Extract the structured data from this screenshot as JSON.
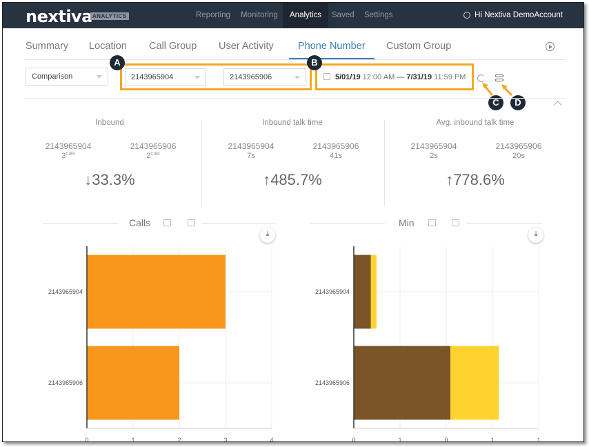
{
  "nav": {
    "logo": "nextiva",
    "logo_badge": "ANALYTICS",
    "items": [
      "Reporting",
      "Monitoring",
      "Analytics",
      "Saved",
      "Settings"
    ],
    "active": "Analytics",
    "user_greeting": "Hi Nextiva DemoAccount",
    "icons": {
      "settings": "gear-icon"
    }
  },
  "tabs": [
    "Summary",
    "Location",
    "Call Group",
    "User Activity",
    "Phone Number",
    "Custom Group"
  ],
  "active_tab": "Phone Number",
  "filters": {
    "mode": "Comparison",
    "number_a": "2143965904",
    "number_b": "2143965906",
    "date_start": "5/01/19",
    "time_start": "12:00 AM",
    "separator": "—",
    "date_end": "7/31/19",
    "time_end": "11:59 PM",
    "callouts": [
      "A",
      "B",
      "C",
      "D"
    ],
    "highlight_color": "#f6a623"
  },
  "stats": [
    {
      "title": "Inbound",
      "a_number": "2143965904",
      "a_value": "3",
      "a_unit": "Calls",
      "b_number": "2143965906",
      "b_value": "2",
      "b_unit": "Calls",
      "change": "33.3%",
      "direction": "down",
      "arrow": "↓"
    },
    {
      "title": "Inbound talk time",
      "a_number": "2143965904",
      "a_value": "7s",
      "a_unit": "",
      "b_number": "2143965906",
      "b_value": "41s",
      "b_unit": "",
      "change": "485.7%",
      "direction": "up",
      "arrow": "↑"
    },
    {
      "title": "Avg. inbound talk time",
      "a_number": "2143965904",
      "a_value": "2s",
      "a_unit": "",
      "b_number": "2143965906",
      "b_value": "20s",
      "b_unit": "",
      "change": "778.6%",
      "direction": "up",
      "arrow": "↑"
    }
  ],
  "charts_meta": {
    "calls_title": "Calls",
    "min_title": "Min",
    "colors": {
      "orange": "#f7981d",
      "brown": "#7b5427",
      "yellow": "#fed330"
    }
  },
  "chart_data": [
    {
      "type": "bar",
      "orientation": "horizontal",
      "title": "Calls",
      "categories": [
        "2143965904",
        "2143965906"
      ],
      "series": [
        {
          "values": [
            3,
            2
          ],
          "color": "#f7981d"
        }
      ],
      "xlim": [
        0,
        4
      ],
      "xticks": [
        "0",
        "1",
        "2",
        "3",
        "4"
      ],
      "grid": true
    },
    {
      "type": "bar",
      "orientation": "horizontal",
      "stacked": true,
      "title": "Min",
      "categories": [
        "2143965904",
        "2143965906"
      ],
      "series": [
        {
          "values": [
            0.37,
            2.09
          ],
          "color": "#7b5427"
        },
        {
          "values": [
            0.12,
            1.05
          ],
          "color": "#fed330"
        }
      ],
      "xlim": [
        0,
        4
      ],
      "xticks": [
        "0",
        "1",
        "0",
        "1",
        "1"
      ],
      "grid": true
    }
  ]
}
